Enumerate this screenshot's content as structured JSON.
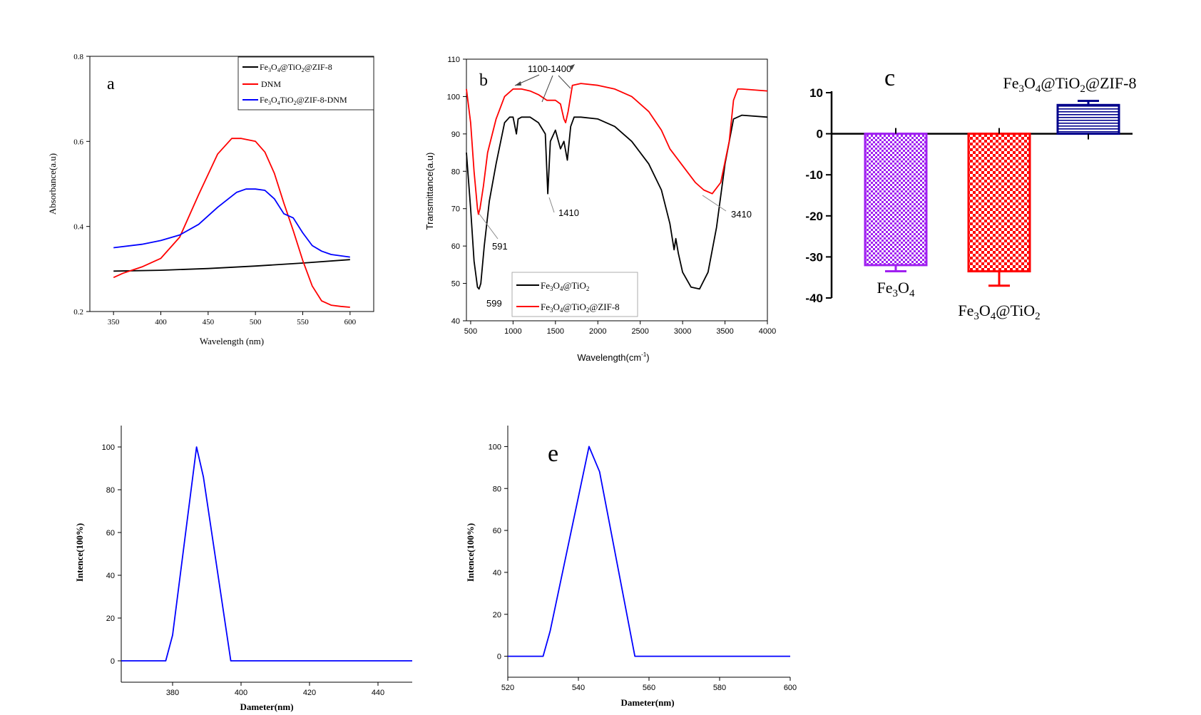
{
  "chart_data": [
    {
      "id": "a",
      "type": "line",
      "panel_label": "a",
      "title": "",
      "xlabel": "Wavelength (nm)",
      "ylabel": "Absorbance(a.u)",
      "xlim": [
        325,
        625
      ],
      "ylim": [
        0.2,
        0.8
      ],
      "xticks": [
        350,
        400,
        450,
        500,
        550,
        600
      ],
      "yticks": [
        0.2,
        0.4,
        0.6,
        0.8
      ],
      "grid": false,
      "legend_position": "top-right",
      "series": [
        {
          "name": "Fe3O4@TiO2@ZIF-8",
          "color": "#000000",
          "x": [
            350,
            400,
            450,
            500,
            550,
            600
          ],
          "y": [
            0.295,
            0.297,
            0.301,
            0.307,
            0.314,
            0.322
          ]
        },
        {
          "name": "DNM",
          "color": "#ff0000",
          "x": [
            350,
            360,
            380,
            400,
            420,
            440,
            460,
            475,
            485,
            500,
            510,
            520,
            530,
            540,
            550,
            560,
            570,
            580,
            590,
            600
          ],
          "y": [
            0.28,
            0.29,
            0.305,
            0.325,
            0.375,
            0.475,
            0.57,
            0.607,
            0.607,
            0.6,
            0.575,
            0.525,
            0.455,
            0.39,
            0.32,
            0.26,
            0.225,
            0.215,
            0.212,
            0.21
          ]
        },
        {
          "name": "Fe3O4TiO2@ZIF-8-DNM",
          "color": "#0000ff",
          "x": [
            350,
            380,
            400,
            420,
            440,
            460,
            480,
            490,
            500,
            510,
            520,
            530,
            540,
            550,
            560,
            570,
            580,
            600
          ],
          "y": [
            0.35,
            0.358,
            0.367,
            0.38,
            0.405,
            0.445,
            0.48,
            0.488,
            0.488,
            0.485,
            0.465,
            0.43,
            0.42,
            0.385,
            0.355,
            0.342,
            0.334,
            0.328
          ]
        }
      ]
    },
    {
      "id": "b",
      "type": "line",
      "panel_label": "b",
      "title": "",
      "xlabel": "Wavelength(cm",
      "xlabel_sup": "-1",
      "xlabel_end": ")",
      "ylabel": "Transmittance(a.u)",
      "xlim": [
        450,
        4000
      ],
      "ylim": [
        40,
        110
      ],
      "xticks": [
        500,
        1000,
        1500,
        2000,
        2500,
        3000,
        3500,
        4000
      ],
      "yticks": [
        40,
        50,
        60,
        70,
        80,
        90,
        100,
        110
      ],
      "grid": false,
      "legend_position": "bottom-left",
      "series": [
        {
          "name": "Fe3O4@TiO2",
          "color": "#000000",
          "x": [
            450,
            500,
            540,
            580,
            599,
            620,
            660,
            720,
            800,
            900,
            960,
            1000,
            1040,
            1060,
            1100,
            1200,
            1300,
            1380,
            1410,
            1440,
            1500,
            1560,
            1600,
            1640,
            1680,
            1720,
            1800,
            2000,
            2200,
            2400,
            2600,
            2750,
            2850,
            2900,
            2920,
            2950,
            3000,
            3100,
            3200,
            3300,
            3400,
            3500,
            3600,
            3700,
            4000
          ],
          "y": [
            85,
            70,
            56,
            49,
            48.5,
            50,
            60,
            72,
            82,
            93,
            94.5,
            94.5,
            90,
            94,
            94.5,
            94.5,
            93,
            90,
            74,
            88,
            91,
            86,
            88,
            83,
            92,
            94.5,
            94.5,
            94,
            92,
            88,
            82,
            75,
            66,
            59,
            62,
            58,
            53,
            49,
            48.5,
            53,
            65,
            82,
            94,
            95,
            94.5
          ]
        },
        {
          "name": "Fe3O4@TiO2@ZIF-8",
          "color": "#ff0000",
          "x": [
            450,
            500,
            540,
            580,
            591,
            610,
            650,
            700,
            800,
            900,
            1000,
            1100,
            1200,
            1300,
            1400,
            1500,
            1560,
            1600,
            1620,
            1650,
            1700,
            1800,
            2000,
            2200,
            2400,
            2600,
            2750,
            2850,
            2950,
            3050,
            3150,
            3250,
            3350,
            3450,
            3550,
            3600,
            3650,
            3700,
            4000
          ],
          "y": [
            102,
            93,
            80,
            70,
            68.5,
            70,
            76,
            85,
            94,
            100,
            102,
            102,
            101.5,
            100.5,
            99,
            99,
            98,
            94,
            93,
            96,
            103,
            103.5,
            103,
            102,
            100,
            96,
            91,
            86,
            83,
            80,
            77,
            75,
            74,
            77,
            88,
            99,
            102,
            102,
            101.5
          ]
        }
      ],
      "annotations": [
        "1100-1400",
        "591",
        "599",
        "1410",
        "3410"
      ]
    },
    {
      "id": "c",
      "type": "bar",
      "panel_label": "c",
      "title": "",
      "xlabel": "",
      "ylabel": "",
      "ylim": [
        -40,
        10
      ],
      "yticks": [
        10,
        0,
        -10,
        -20,
        -30,
        -40
      ],
      "grid": false,
      "categories": [
        "Fe3O4",
        "Fe3O4@TiO2",
        "Fe3O4@TiO2@ZIF-8"
      ],
      "values": [
        -32,
        -33.5,
        7
      ],
      "errors": [
        1.5,
        3.5,
        1
      ],
      "colors": [
        "#a020f0",
        "#ff0000",
        "#00008b"
      ]
    },
    {
      "id": "d",
      "type": "line",
      "panel_label": "",
      "title": "",
      "xlabel": "Dameter(nm)",
      "ylabel": "Intence(100%)",
      "xlim": [
        365,
        450
      ],
      "ylim": [
        -10,
        110
      ],
      "xticks": [
        380,
        400,
        420,
        440
      ],
      "yticks": [
        0,
        20,
        40,
        60,
        80,
        100
      ],
      "grid": false,
      "series": [
        {
          "name": "",
          "color": "#0000ff",
          "x": [
            365,
            378,
            380,
            387,
            389,
            397,
            450
          ],
          "y": [
            0,
            0,
            12,
            100,
            86,
            0,
            0
          ]
        }
      ]
    },
    {
      "id": "e",
      "type": "line",
      "panel_label": "e",
      "title": "",
      "xlabel": "Dameter(nm)",
      "ylabel": "Intence(100%)",
      "xlim": [
        520,
        600
      ],
      "ylim": [
        -10,
        110
      ],
      "xticks": [
        520,
        540,
        560,
        580,
        600
      ],
      "yticks": [
        0,
        20,
        40,
        60,
        80,
        100
      ],
      "grid": false,
      "series": [
        {
          "name": "",
          "color": "#0000ff",
          "x": [
            520,
            530,
            532,
            543,
            546,
            556,
            600
          ],
          "y": [
            0,
            0,
            12,
            100,
            88,
            0,
            0
          ]
        }
      ]
    }
  ]
}
